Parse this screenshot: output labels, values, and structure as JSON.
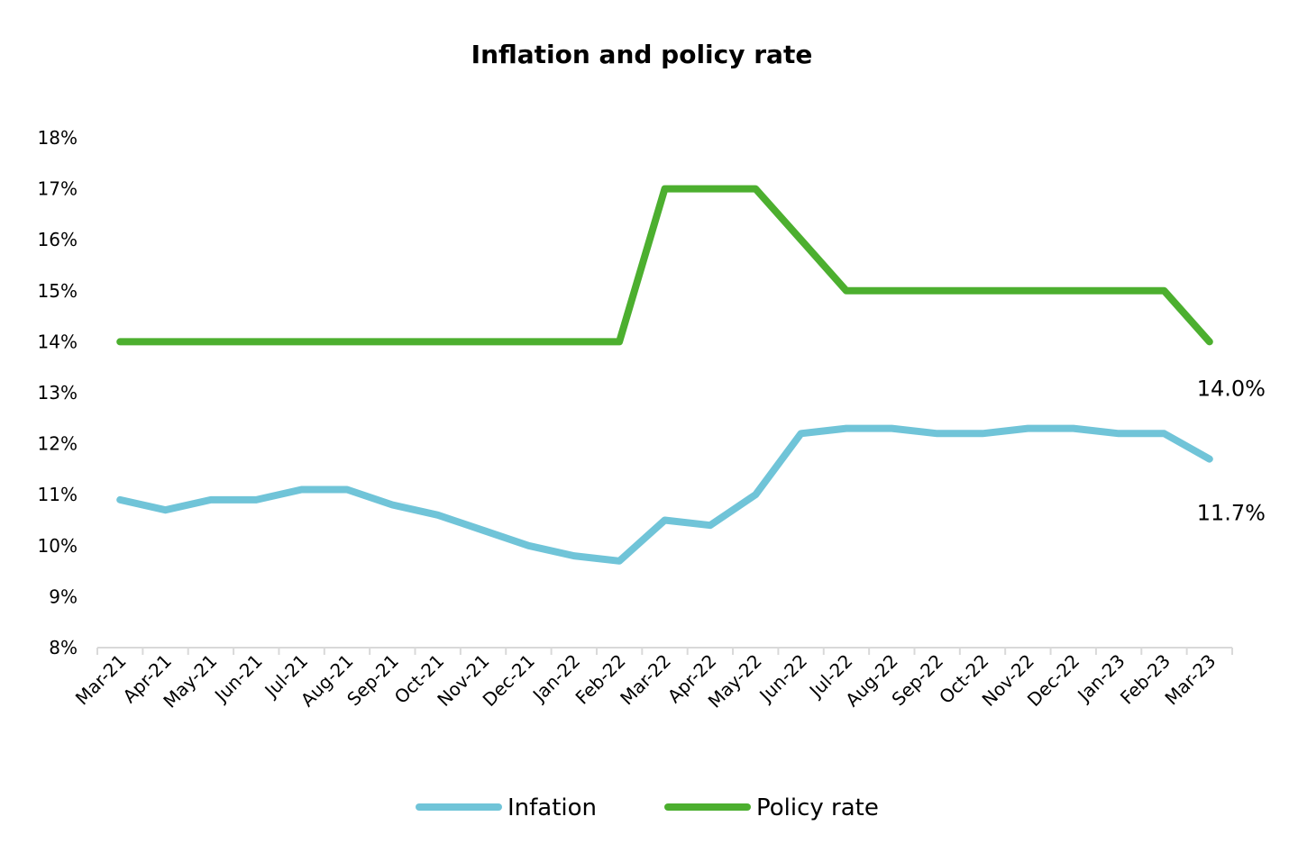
{
  "chart_data": {
    "type": "line",
    "title": "Inflation and policy rate",
    "xlabel": "",
    "ylabel": "",
    "categories": [
      "Mar-21",
      "Apr-21",
      "May-21",
      "Jun-21",
      "Jul-21",
      "Aug-21",
      "Sep-21",
      "Oct-21",
      "Nov-21",
      "Dec-21",
      "Jan-22",
      "Feb-22",
      "Mar-22",
      "Apr-22",
      "May-22",
      "Jun-22",
      "Jul-22",
      "Aug-22",
      "Sep-22",
      "Oct-22",
      "Nov-22",
      "Dec-22",
      "Jan-23",
      "Feb-23",
      "Mar-23"
    ],
    "ylim": [
      8,
      18
    ],
    "yticks": [
      8,
      9,
      10,
      11,
      12,
      13,
      14,
      15,
      16,
      17,
      18
    ],
    "ytick_labels": [
      "8%",
      "9%",
      "10%",
      "11%",
      "12%",
      "13%",
      "14%",
      "15%",
      "16%",
      "17%",
      "18%"
    ],
    "grid": false,
    "legend_position": "bottom",
    "series": [
      {
        "name": "Infation",
        "color": "#70c4d8",
        "values": [
          10.9,
          10.7,
          10.9,
          10.9,
          11.1,
          11.1,
          10.8,
          10.6,
          10.3,
          10.0,
          9.8,
          9.7,
          10.5,
          10.4,
          11.0,
          12.2,
          12.3,
          12.3,
          12.2,
          12.2,
          12.3,
          12.3,
          12.2,
          12.2,
          11.7
        ],
        "end_label": "11.7%"
      },
      {
        "name": "Policy rate",
        "color": "#4caf2f",
        "values": [
          14,
          14,
          14,
          14,
          14,
          14,
          14,
          14,
          14,
          14,
          14,
          14,
          17,
          17,
          17,
          16,
          15,
          15,
          15,
          15,
          15,
          15,
          15,
          15,
          14
        ],
        "end_label": "14.0%"
      }
    ]
  }
}
